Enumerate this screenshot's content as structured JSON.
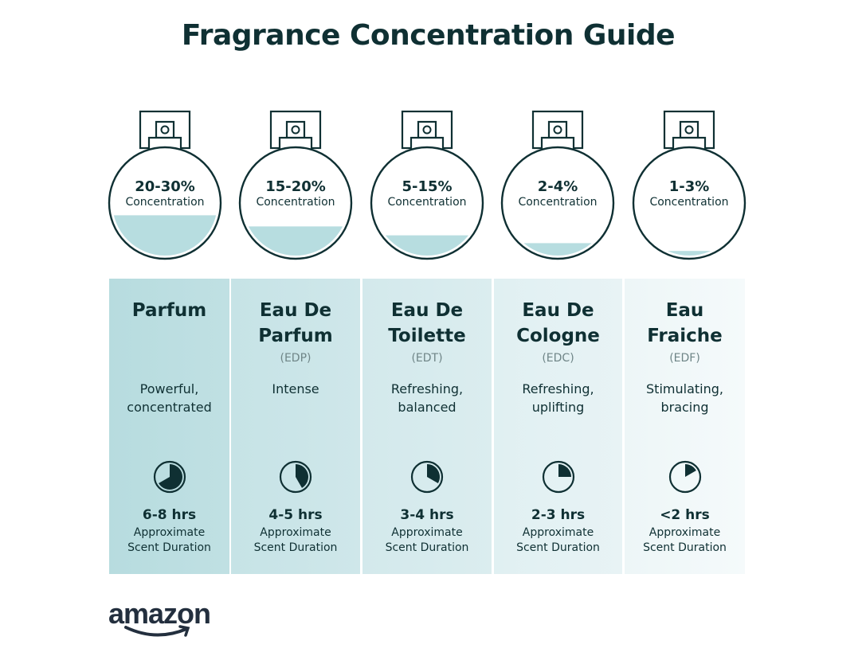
{
  "title": "Fragrance Concentration Guide",
  "colors": {
    "text": "#0f3033",
    "liquid": "#b7dde0",
    "column_start": "#b7dcdf",
    "column_end": "#f1f7f8"
  },
  "types": [
    {
      "concentration": "20-30%",
      "concentration_label": "Concentration",
      "fill_level": 0.39,
      "name_lines": [
        "Parfum"
      ],
      "abbr": "",
      "description_lines": [
        "Powerful,",
        "concentrated"
      ],
      "duration": "6-8 hrs",
      "clock_fraction": 0.667,
      "duration_label_lines": [
        "Approximate",
        "Scent Duration"
      ]
    },
    {
      "concentration": "15-20%",
      "concentration_label": "Concentration",
      "fill_level": 0.29,
      "name_lines": [
        "Eau De",
        "Parfum"
      ],
      "abbr": "(EDP)",
      "description_lines": [
        "Intense"
      ],
      "duration": "4-5 hrs",
      "clock_fraction": 0.417,
      "duration_label_lines": [
        "Approximate",
        "Scent Duration"
      ]
    },
    {
      "concentration": "5-15%",
      "concentration_label": "Concentration",
      "fill_level": 0.21,
      "name_lines": [
        "Eau De",
        "Toilette"
      ],
      "abbr": "(EDT)",
      "description_lines": [
        "Refreshing,",
        "balanced"
      ],
      "duration": "3-4 hrs",
      "clock_fraction": 0.333,
      "duration_label_lines": [
        "Approximate",
        "Scent Duration"
      ]
    },
    {
      "concentration": "2-4%",
      "concentration_label": "Concentration",
      "fill_level": 0.14,
      "name_lines": [
        "Eau De",
        "Cologne"
      ],
      "abbr": "(EDC)",
      "description_lines": [
        "Refreshing,",
        "uplifting"
      ],
      "duration": "2-3 hrs",
      "clock_fraction": 0.25,
      "duration_label_lines": [
        "Approximate",
        "Scent Duration"
      ]
    },
    {
      "concentration": "1-3%",
      "concentration_label": "Concentration",
      "fill_level": 0.07,
      "name_lines": [
        "Eau",
        "Fraiche"
      ],
      "abbr": "(EDF)",
      "description_lines": [
        "Stimulating,",
        "bracing"
      ],
      "duration": "<2 hrs",
      "clock_fraction": 0.167,
      "duration_label_lines": [
        "Approximate",
        "Scent Duration"
      ]
    }
  ],
  "logo": {
    "text": "amazon"
  }
}
